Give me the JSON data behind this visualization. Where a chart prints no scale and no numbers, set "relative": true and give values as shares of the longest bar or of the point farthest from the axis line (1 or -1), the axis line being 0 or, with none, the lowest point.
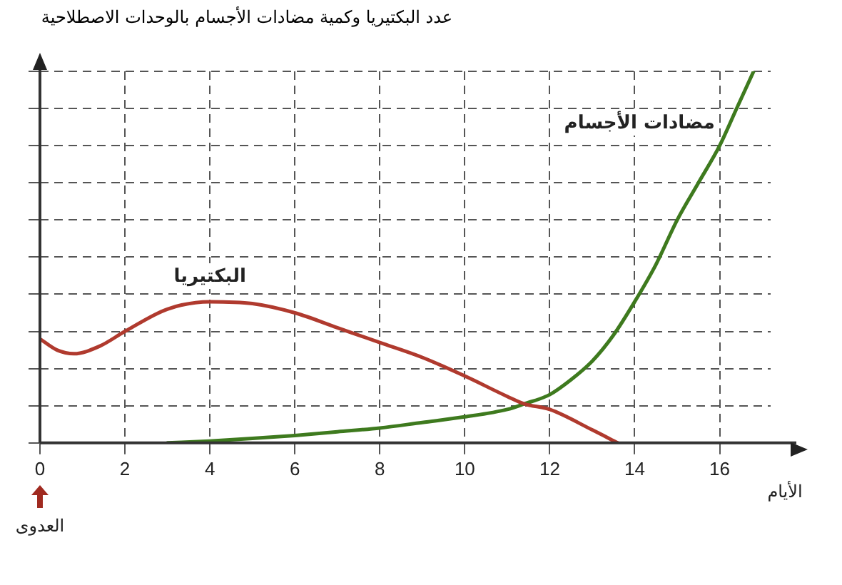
{
  "chart_data": {
    "type": "line",
    "relative": true,
    "ylabel": "عدد البكتيريا وكمية مضادات الأجسام بالوحدات الاصطلاحية",
    "xlabel": "الأيام",
    "xlim": [
      0,
      17.2
    ],
    "xticks": [
      0,
      2,
      4,
      6,
      8,
      10,
      12,
      14,
      16
    ],
    "grid": true,
    "legend": false,
    "marker": "none",
    "annotations": [
      "العدوى"
    ],
    "series": [
      {
        "name": "البكتيريا",
        "color": "#b03a2e",
        "x": [
          0,
          0.4,
          0.8,
          1.4,
          2,
          3,
          4,
          5,
          6,
          7,
          8,
          9,
          10,
          11,
          11.4,
          12,
          13,
          13.6
        ],
        "values": [
          0.28,
          0.25,
          0.24,
          0.26,
          0.3,
          0.36,
          0.38,
          0.375,
          0.35,
          0.31,
          0.27,
          0.23,
          0.18,
          0.125,
          0.105,
          0.09,
          0.035,
          0
        ]
      },
      {
        "name": "مضادات الأجسام",
        "color": "#3e7a1e",
        "x": [
          3,
          4,
          5,
          6,
          7,
          8,
          9,
          10,
          11,
          11.4,
          12,
          12.5,
          13,
          13.5,
          14,
          14.5,
          15,
          15.5,
          16,
          16.4,
          16.8
        ],
        "values": [
          0,
          0.005,
          0.012,
          0.02,
          0.03,
          0.04,
          0.055,
          0.07,
          0.09,
          0.105,
          0.13,
          0.17,
          0.22,
          0.29,
          0.38,
          0.48,
          0.6,
          0.7,
          0.8,
          0.9,
          1
        ]
      }
    ]
  }
}
